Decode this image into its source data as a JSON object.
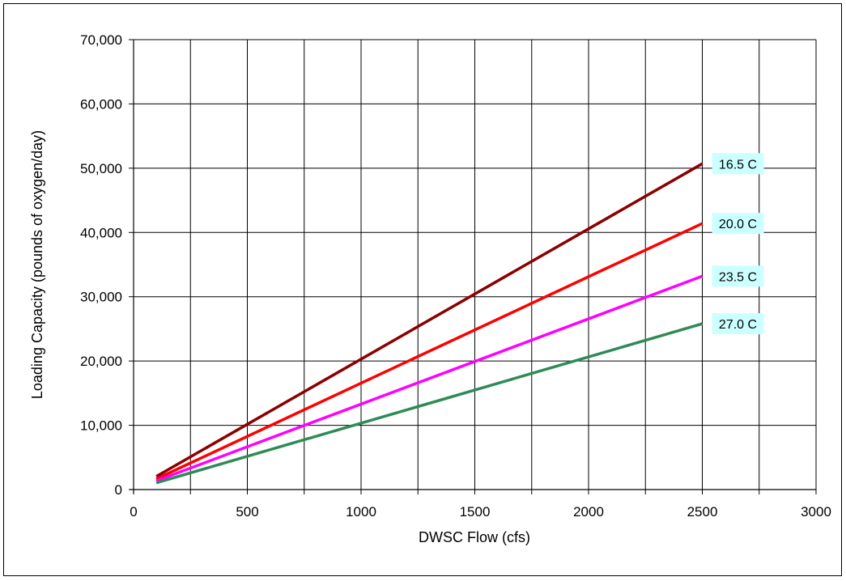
{
  "chart_data": {
    "type": "line",
    "title": "",
    "xlabel": "DWSC Flow (cfs)",
    "ylabel": "Loading Capacity (pounds of oxygen/day)",
    "xlim": [
      0,
      3000
    ],
    "ylim": [
      0,
      70000
    ],
    "x_ticks": [
      0,
      250,
      500,
      750,
      1000,
      1250,
      1500,
      1750,
      2000,
      2250,
      2500,
      2750,
      3000
    ],
    "x_tick_labels": [
      "0",
      "500",
      "1000",
      "1500",
      "2000",
      "2500",
      "3000"
    ],
    "x_tick_label_values": [
      0,
      500,
      1000,
      1500,
      2000,
      2500,
      3000
    ],
    "y_ticks": [
      0,
      10000,
      20000,
      30000,
      40000,
      50000,
      60000,
      70000
    ],
    "y_tick_labels": [
      "0",
      "10,000",
      "20,000",
      "30,000",
      "40,000",
      "50,000",
      "60,000",
      "70,000"
    ],
    "grid": true,
    "legend": "none",
    "series": [
      {
        "name": "16.5 C",
        "color": "#8B0000",
        "label_bg": "#CCFFFF",
        "x": [
          100,
          2500
        ],
        "y": [
          2050,
          50700
        ]
      },
      {
        "name": "20.0 C",
        "color": "#FF0000",
        "label_bg": "#CCFFFF",
        "x": [
          100,
          2500
        ],
        "y": [
          1650,
          41400
        ]
      },
      {
        "name": "23.5 C",
        "color": "#FF00FF",
        "label_bg": "#CCFFFF",
        "x": [
          100,
          2500
        ],
        "y": [
          1350,
          33200
        ]
      },
      {
        "name": "27.0 C",
        "color": "#2E8B57",
        "label_bg": "#CCFFFF",
        "x": [
          100,
          2500
        ],
        "y": [
          1050,
          25800
        ]
      }
    ]
  }
}
